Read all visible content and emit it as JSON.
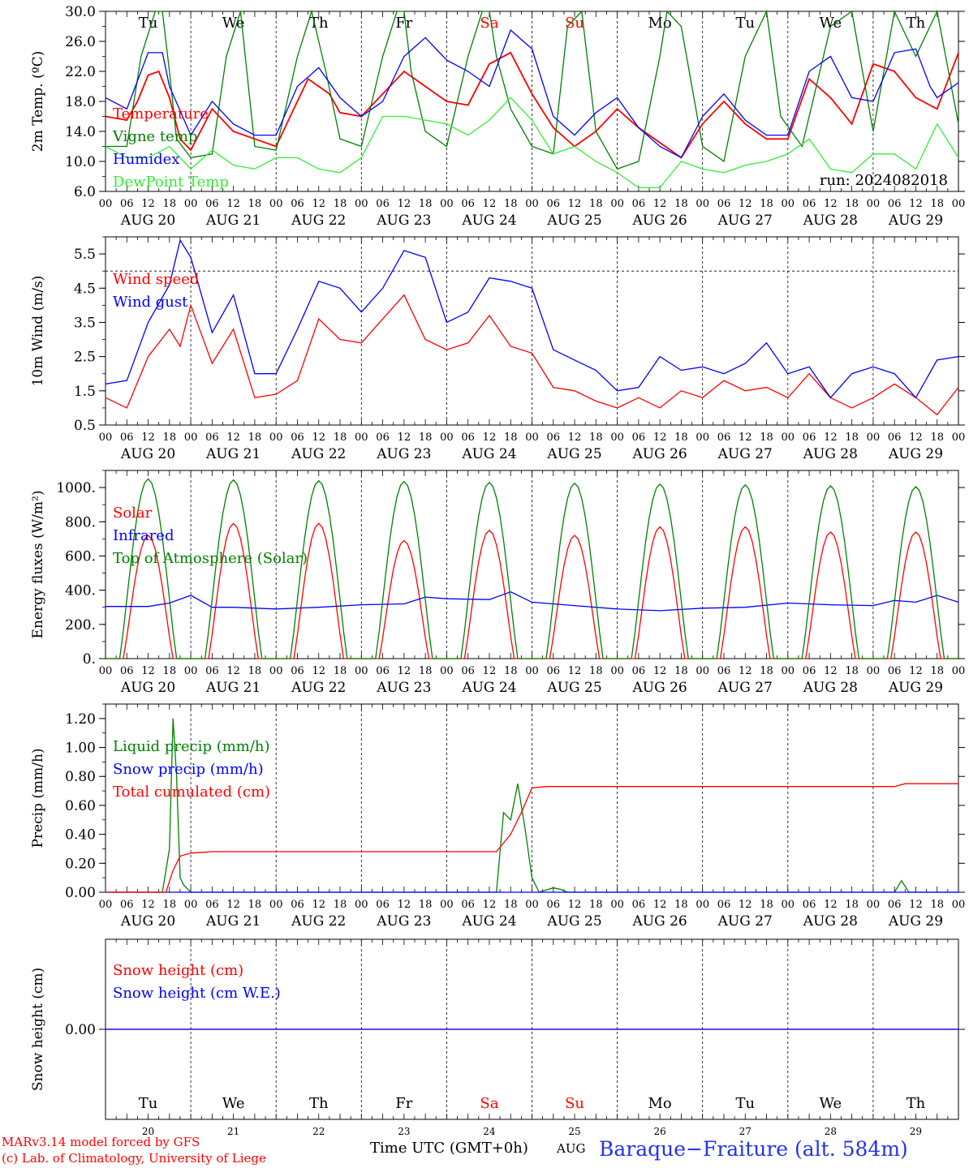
{
  "days": {
    "dates": [
      "AUG 20",
      "AUG 21",
      "AUG 22",
      "AUG 23",
      "AUG 24",
      "AUG 25",
      "AUG 26",
      "AUG 27",
      "AUG 28",
      "AUG 29"
    ],
    "weekdays": [
      "Tu",
      "We",
      "Th",
      "Fr",
      "Sa",
      "Su",
      "Mo",
      "Tu",
      "We",
      "Th"
    ],
    "weekend_flags": [
      false,
      false,
      false,
      false,
      true,
      true,
      false,
      false,
      false,
      false
    ],
    "day_numbers": [
      "20",
      "21",
      "22",
      "23",
      "24",
      "25",
      "26",
      "27",
      "28",
      "29"
    ],
    "hour_ticks": [
      "00",
      "06",
      "12",
      "18"
    ],
    "final_tick": "00"
  },
  "colors": {
    "red": "#ff0000",
    "green": "#008000",
    "blue": "#0000ff",
    "lightgreen": "#33ee33",
    "purple": "#800080",
    "text": "#000000"
  },
  "footer": {
    "model": "MARv3.14 model forced by GFS",
    "copyright": "(c) Lab. of Climatology, University of Liege",
    "time_axis": "Time UTC (GMT+0h)",
    "month": "AUG",
    "station": "Baraque−Fraiture (alt. 584m)"
  },
  "chart_data": [
    {
      "type": "line",
      "ylabel": "2m Temp. (ºC)",
      "ylim": [
        6,
        30
      ],
      "yticks": [
        "6.0",
        "10.0",
        "14.0",
        "18.0",
        "22.0",
        "26.0",
        "30.0"
      ],
      "annotation": "run: 2024082018",
      "x_unit": "hours since Aug 20 00 UTC",
      "series": [
        {
          "name": "Temperature",
          "color": "red",
          "x": [
            0,
            6,
            9,
            12,
            15,
            18,
            21,
            24,
            30,
            36,
            42,
            48,
            52,
            57,
            63,
            66,
            72,
            78,
            84,
            90,
            96,
            102,
            108,
            114,
            120,
            126,
            132,
            138,
            144,
            150,
            156,
            162,
            168,
            174,
            180,
            186,
            192,
            198,
            204,
            210,
            216,
            222,
            228,
            234,
            240
          ],
          "y": [
            16,
            15.5,
            18,
            21.5,
            22,
            18.5,
            13,
            11.5,
            17,
            14,
            13,
            12,
            16,
            21,
            19,
            16.5,
            16,
            19,
            22,
            20,
            18,
            17.5,
            23,
            24.5,
            19,
            14.5,
            12,
            14,
            17,
            14.5,
            12.5,
            10.5,
            15,
            18,
            15,
            13,
            13,
            21,
            18.5,
            15,
            23,
            22,
            18.5,
            17,
            24.5
          ]
        },
        {
          "name": "Vigne temp",
          "color": "green",
          "x": [
            0,
            6,
            10,
            14,
            16,
            18,
            20,
            24,
            30,
            34,
            38,
            42,
            48,
            54,
            58,
            62,
            66,
            72,
            78,
            82,
            84,
            86,
            90,
            96,
            102,
            106,
            108,
            110,
            114,
            120,
            126,
            130,
            134,
            138,
            144,
            150,
            156,
            158,
            162,
            168,
            174,
            180,
            186,
            190,
            196,
            204,
            210,
            216,
            222,
            228,
            234,
            240
          ],
          "y": [
            12,
            12,
            24,
            30,
            30,
            22,
            13,
            10.5,
            11,
            24,
            30,
            12,
            11.5,
            24,
            30,
            22,
            13,
            12,
            24,
            30,
            30,
            22,
            14,
            12,
            24,
            30,
            30,
            24,
            17,
            12,
            11,
            28,
            30,
            14,
            9,
            10,
            24,
            30,
            28,
            12,
            10,
            24,
            30,
            16,
            12,
            28,
            30,
            14,
            30,
            24,
            30,
            15
          ]
        },
        {
          "name": "Humidex",
          "color": "blue",
          "x": [
            0,
            6,
            12,
            16,
            18,
            24,
            30,
            36,
            42,
            48,
            54,
            60,
            66,
            72,
            78,
            84,
            90,
            96,
            102,
            108,
            114,
            120,
            126,
            132,
            138,
            144,
            150,
            156,
            162,
            168,
            174,
            180,
            186,
            192,
            198,
            204,
            210,
            216,
            222,
            228,
            232,
            234,
            240
          ],
          "y": [
            18.5,
            17,
            24.5,
            24.5,
            20,
            13.5,
            18,
            15,
            13.5,
            13.5,
            20,
            22.5,
            18.5,
            16,
            18,
            24,
            26.5,
            23.5,
            22,
            20,
            27.5,
            25,
            16,
            13.5,
            16.5,
            18.5,
            14.5,
            12,
            10.5,
            16,
            19,
            15.5,
            13.5,
            13.5,
            22,
            24,
            18.5,
            18,
            24.5,
            25,
            20,
            18.5,
            20.5
          ]
        },
        {
          "name": "DewPoint Temp",
          "color": "lightgreen",
          "x": [
            0,
            6,
            12,
            18,
            24,
            30,
            36,
            42,
            48,
            54,
            60,
            66,
            72,
            78,
            84,
            90,
            96,
            102,
            108,
            114,
            120,
            126,
            132,
            138,
            144,
            150,
            156,
            162,
            168,
            174,
            180,
            186,
            192,
            198,
            204,
            210,
            216,
            222,
            228,
            234,
            240
          ],
          "y": [
            12,
            10.5,
            10.5,
            12,
            9,
            11.5,
            9.5,
            9,
            10.5,
            10.5,
            9,
            8.5,
            10.5,
            16,
            16,
            15.5,
            15,
            13.5,
            15.5,
            18.5,
            15.5,
            11,
            12,
            10,
            8.5,
            6.5,
            6.5,
            10,
            9,
            8.5,
            9.5,
            10,
            11,
            13,
            9,
            8.5,
            11,
            11,
            9,
            15,
            10.5
          ]
        }
      ],
      "legend_position": "left"
    },
    {
      "type": "line",
      "ylabel": "10m Wind (m/s)",
      "ylim": [
        0.5,
        6
      ],
      "yticks": [
        "0.5",
        "1.5",
        "2.5",
        "3.5",
        "4.5",
        "5.5"
      ],
      "reference_line": 5,
      "series": [
        {
          "name": "Wind speed",
          "color": "red",
          "x": [
            0,
            6,
            12,
            18,
            21,
            24,
            30,
            36,
            42,
            48,
            54,
            60,
            66,
            72,
            78,
            84,
            90,
            96,
            102,
            108,
            114,
            120,
            126,
            132,
            138,
            144,
            150,
            156,
            162,
            168,
            174,
            180,
            186,
            192,
            198,
            204,
            210,
            216,
            222,
            228,
            234,
            240
          ],
          "y": [
            1.3,
            1,
            2.5,
            3.3,
            2.8,
            4,
            2.3,
            3.3,
            1.3,
            1.4,
            1.8,
            3.6,
            3,
            2.9,
            3.6,
            4.3,
            3,
            2.7,
            2.9,
            3.7,
            2.8,
            2.6,
            1.6,
            1.5,
            1.2,
            1,
            1.3,
            1,
            1.5,
            1.3,
            1.8,
            1.5,
            1.6,
            1.3,
            2,
            1.3,
            1,
            1.3,
            1.7,
            1.3,
            0.8,
            1.6
          ]
        },
        {
          "name": "Wind gust",
          "color": "blue",
          "x": [
            0,
            6,
            12,
            18,
            21,
            24,
            30,
            36,
            42,
            48,
            54,
            60,
            66,
            72,
            78,
            84,
            90,
            96,
            102,
            108,
            114,
            120,
            126,
            132,
            138,
            144,
            150,
            156,
            162,
            168,
            174,
            180,
            186,
            192,
            198,
            204,
            210,
            216,
            222,
            228,
            234,
            240
          ],
          "y": [
            1.7,
            1.8,
            3.5,
            4.6,
            5.9,
            5.4,
            3.2,
            4.3,
            2,
            2,
            3.3,
            4.7,
            4.5,
            3.8,
            4.5,
            5.6,
            5.4,
            3.5,
            3.8,
            4.8,
            4.7,
            4.5,
            2.7,
            2.4,
            2.1,
            1.5,
            1.6,
            2.5,
            2.1,
            2.2,
            2,
            2.3,
            2.9,
            2,
            2.2,
            1.3,
            2,
            2.2,
            2,
            1.3,
            2.4,
            2.5
          ]
        }
      ],
      "legend_position": "left"
    },
    {
      "type": "line",
      "ylabel": "Energy fluxes (W/m²)",
      "ylim": [
        0,
        1100
      ],
      "yticks": [
        "0.",
        "200.",
        "400.",
        "600.",
        "800.",
        "1000."
      ],
      "series": [
        {
          "name": "Solar",
          "color": "red",
          "peaks": [
            720,
            790,
            790,
            690,
            750,
            720,
            770,
            770,
            740,
            740
          ]
        },
        {
          "name": "Infrared",
          "color": "blue",
          "x": [
            0,
            12,
            18,
            24,
            30,
            36,
            48,
            60,
            72,
            84,
            90,
            96,
            108,
            114,
            120,
            132,
            144,
            156,
            168,
            180,
            192,
            204,
            216,
            222,
            228,
            234,
            240
          ],
          "y": [
            305,
            305,
            325,
            370,
            300,
            300,
            290,
            300,
            315,
            320,
            360,
            350,
            345,
            390,
            330,
            310,
            290,
            280,
            295,
            300,
            325,
            315,
            310,
            340,
            330,
            370,
            330
          ]
        },
        {
          "name": "Top of Atmosphere (Solar)",
          "color": "green",
          "peaks": [
            1050,
            1045,
            1040,
            1035,
            1030,
            1025,
            1020,
            1015,
            1010,
            1005
          ]
        }
      ],
      "legend_position": "left"
    },
    {
      "type": "line",
      "ylabel": "Precip (mm/h)",
      "ylim": [
        0,
        1.3
      ],
      "yticks": [
        "0.00",
        "0.20",
        "0.40",
        "0.60",
        "0.80",
        "1.00",
        "1.20"
      ],
      "series": [
        {
          "name": "Liquid precip (mm/h)",
          "color": "green",
          "x": [
            0,
            16,
            18,
            19,
            20,
            21,
            22,
            24,
            96,
            110,
            112,
            114,
            116,
            118,
            120,
            122,
            126,
            128,
            130,
            222,
            224,
            226,
            240
          ],
          "y": [
            0,
            0,
            0.3,
            1.2,
            0.8,
            0.1,
            0.05,
            0,
            0,
            0,
            0.55,
            0.5,
            0.75,
            0.45,
            0.1,
            0,
            0.03,
            0.02,
            0,
            0,
            0.08,
            0,
            0
          ]
        },
        {
          "name": "Snow precip (mm/h)",
          "color": "blue",
          "x": [
            0,
            240
          ],
          "y": [
            0,
            0
          ]
        },
        {
          "name": "Total cumulated (cm)",
          "color": "red",
          "x": [
            0,
            17,
            19,
            21,
            24,
            30,
            36,
            110,
            114,
            117,
            120,
            124,
            222,
            225,
            240
          ],
          "y": [
            0,
            0,
            0.15,
            0.25,
            0.27,
            0.28,
            0.28,
            0.28,
            0.4,
            0.55,
            0.72,
            0.73,
            0.73,
            0.75,
            0.75
          ]
        }
      ],
      "legend_position": "left"
    },
    {
      "type": "line",
      "ylabel": "Snow height (cm)",
      "yticks": [
        "0.00"
      ],
      "series": [
        {
          "name": "Snow height (cm)",
          "color": "red",
          "x": [
            0,
            240
          ],
          "y": [
            0,
            0
          ]
        },
        {
          "name": "Snow height (cm W.E.)",
          "color": "blue",
          "x": [
            0,
            240
          ],
          "y": [
            0,
            0
          ]
        }
      ],
      "legend_position": "left"
    }
  ]
}
